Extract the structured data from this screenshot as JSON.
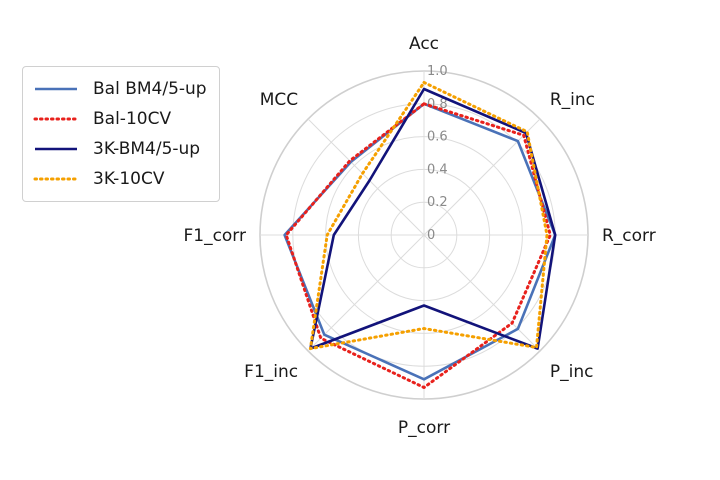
{
  "chart_data": {
    "type": "radar",
    "axes": [
      "Acc",
      "R_inc",
      "R_corr",
      "P_inc",
      "P_corr",
      "F1_inc",
      "F1_corr",
      "MCC"
    ],
    "radial_ticks": [
      "0",
      "0.2",
      "0.4",
      "0.6",
      "0.8",
      "1.0"
    ],
    "rlim": [
      0,
      1.0
    ],
    "grid": true,
    "legend_position": "left",
    "series": [
      {
        "name": "Bal BM4/5-up",
        "color": "#4a72b8",
        "style": "solid",
        "values": [
          0.8,
          0.81,
          0.8,
          0.81,
          0.88,
          0.86,
          0.85,
          0.63
        ]
      },
      {
        "name": "Bal-10CV",
        "color": "#e8211c",
        "style": "dotted",
        "values": [
          0.8,
          0.86,
          0.77,
          0.76,
          0.93,
          0.89,
          0.84,
          0.64
        ]
      },
      {
        "name": "3K-BM4/5-up",
        "color": "#12137a",
        "style": "solid",
        "values": [
          0.89,
          0.88,
          0.8,
          0.98,
          0.43,
          0.98,
          0.55,
          0.47
        ]
      },
      {
        "name": "3K-10CV",
        "color": "#f5a000",
        "style": "dotted",
        "values": [
          0.93,
          0.89,
          0.75,
          0.97,
          0.57,
          0.98,
          0.59,
          0.53
        ]
      }
    ]
  }
}
